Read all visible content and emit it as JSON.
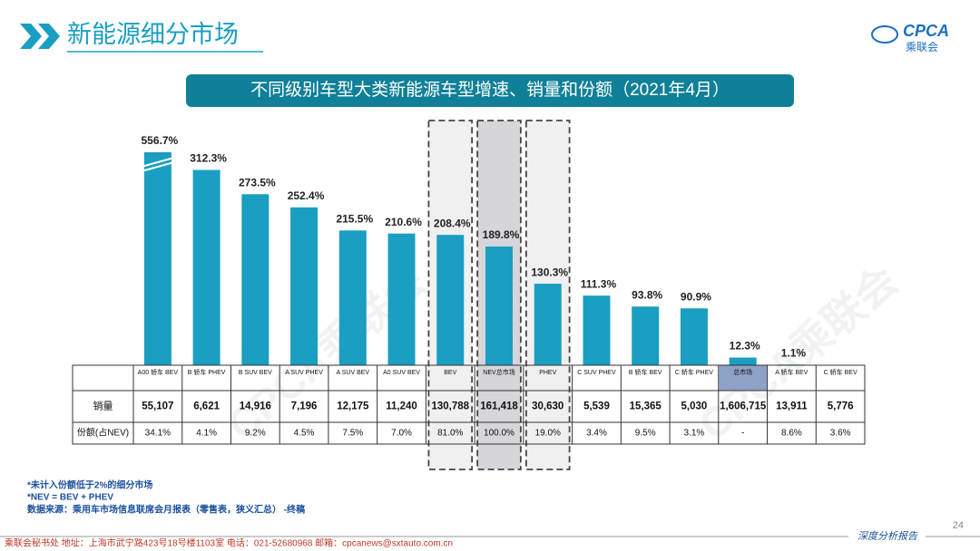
{
  "header": {
    "title": "新能源细分市场",
    "logo": "CPCA",
    "logo_sub": "乘联会"
  },
  "chart_data": {
    "type": "bar",
    "title": "不同级别车型大类新能源车型增速、销量和份额（2021年4月）",
    "categories": [
      "A00 轿车 BEV",
      "B 轿车 PHEV",
      "B SUV BEV",
      "A SUV PHEV",
      "A SUV BEV",
      "A0 SUV BEV",
      "BEV",
      "NEV总市场",
      "PHEV",
      "C SUV PHEV",
      "B 轿车 BEV",
      "C 轿车 PHEV",
      "总市场",
      "A 轿车 BEV",
      "C 轿车 BEV"
    ],
    "values": [
      556.7,
      312.3,
      273.5,
      252.4,
      215.5,
      210.6,
      208.4,
      189.8,
      130.3,
      111.3,
      93.8,
      90.9,
      12.3,
      1.1,
      null
    ],
    "value_labels": [
      "556.7%",
      "312.3%",
      "273.5%",
      "252.4%",
      "215.5%",
      "210.6%",
      "208.4%",
      "189.8%",
      "130.3%",
      "111.3%",
      "93.8%",
      "90.9%",
      "12.3%",
      "1.1%",
      null
    ],
    "color": "#1a9ec2",
    "axis_break": true,
    "table": {
      "rows": [
        {
          "label": "销量",
          "cells": [
            "55,107",
            "6,621",
            "14,916",
            "7,196",
            "12,175",
            "11,240",
            "130,788",
            "161,418",
            "30,630",
            "5,539",
            "15,365",
            "5,030",
            "1,606,715",
            "13,911",
            "5,776"
          ]
        },
        {
          "label": "份额(占NEV)",
          "cells": [
            "34.1%",
            "4.1%",
            "9.2%",
            "4.5%",
            "7.5%",
            "7.0%",
            "81.0%",
            "100.0%",
            "19.0%",
            "3.4%",
            "9.5%",
            "3.1%",
            "-",
            "8.6%",
            "3.6%"
          ]
        }
      ]
    }
  },
  "notes": [
    "*未计入份额低于2%的细分市场",
    "*NEV = BEV + PHEV",
    "数据来源：乘用车市场信息联席会月报表（零售表，狭义汇总）   -终稿"
  ],
  "footer": {
    "contact": "乘联会秘书处    地址：上海市武宁路423号18号楼1103室    电话：021-52680968    邮箱：cpcanews@sxtauto.com.cn",
    "report": "深度分析报告",
    "page": 24
  },
  "watermark": "CPCA乘联会"
}
